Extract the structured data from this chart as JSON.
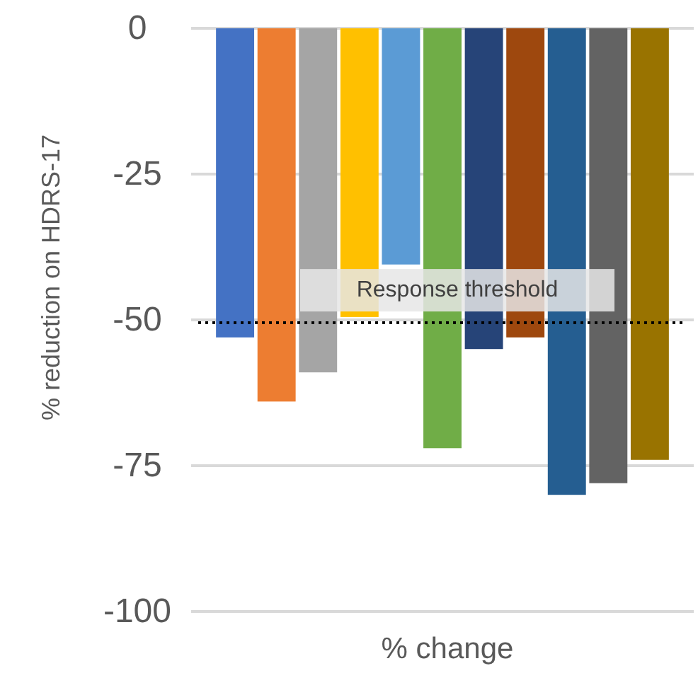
{
  "chart_data": {
    "type": "bar",
    "xlabel": "% change",
    "ylabel": "% reduction on HDRS-17",
    "categories": [
      null,
      null,
      null,
      null,
      null,
      null,
      null,
      null,
      null,
      null,
      null
    ],
    "values": [
      -53,
      -64,
      -59,
      -49.5,
      -40.5,
      -72,
      -55,
      -53,
      -80,
      -78,
      -74
    ],
    "colors": [
      "#4472c4",
      "#ed7d31",
      "#a5a5a5",
      "#ffc000",
      "#5b9bd5",
      "#70ad47",
      "#264478",
      "#9e480e",
      "#255e91",
      "#636363",
      "#997300"
    ],
    "ylim": [
      -100,
      0
    ],
    "yticks": [
      0,
      -25,
      -50,
      -75,
      -100
    ],
    "grid": "y",
    "ref_lines": [
      {
        "axis": "y",
        "value": -50.5,
        "label": "Response threshold",
        "color": "#000000",
        "line_style": "dotted"
      }
    ]
  }
}
